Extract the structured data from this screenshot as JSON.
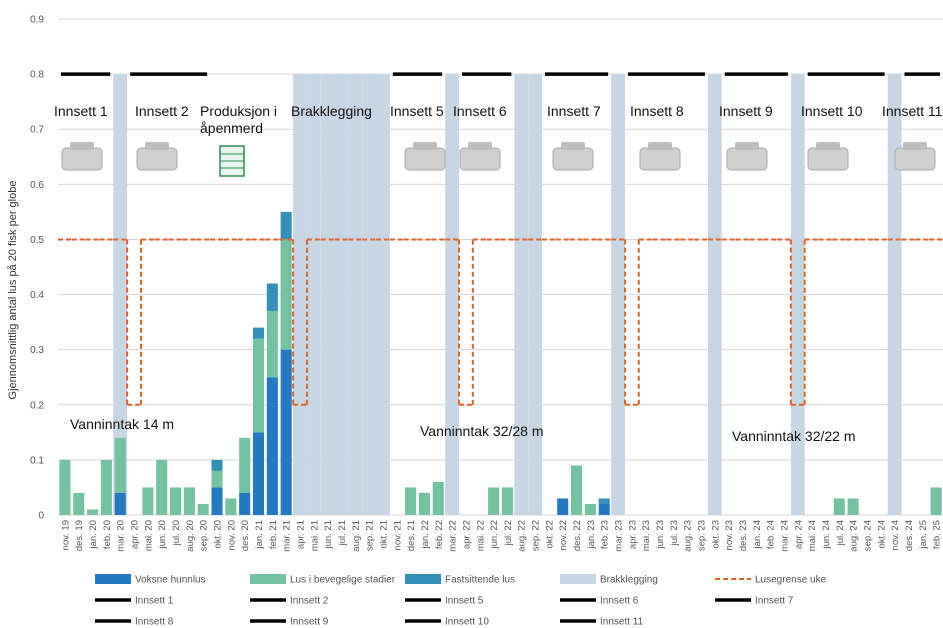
{
  "chart_data": {
    "type": "combo",
    "y_label": "Gjennomsnittlig antal lus på 20 fisk per globe",
    "ylim": [
      0,
      0.9
    ],
    "yticks": [
      0,
      0.1,
      0.2,
      0.3,
      0.4,
      0.5,
      0.6,
      0.7,
      0.8,
      0.9
    ],
    "grid": true,
    "categories": [
      "nov. 19",
      "des. 19",
      "jan. 20",
      "feb. 20",
      "mar. 20",
      "apr. 20",
      "mai. 20",
      "jun. 20",
      "jul. 20",
      "aug. 20",
      "sep. 20",
      "okt. 20",
      "nov. 20",
      "des. 20",
      "jan. 21",
      "feb. 21",
      "mar. 21",
      "apr. 21",
      "mai. 21",
      "jun. 21",
      "jul. 21",
      "aug. 21",
      "sep. 21",
      "okt. 21",
      "nov. 21",
      "des. 21",
      "jan. 22",
      "feb. 22",
      "mar. 22",
      "apr. 22",
      "mai. 22",
      "jun. 22",
      "jul. 22",
      "aug. 22",
      "sep. 22",
      "okt. 22",
      "nov. 22",
      "des. 22",
      "jan. 23",
      "feb. 23",
      "mar. 23",
      "apr. 23",
      "mai. 23",
      "jun. 23",
      "jul. 23",
      "aug. 23",
      "sep. 23",
      "okt. 23",
      "nov. 23",
      "des. 23",
      "jan. 24",
      "feb. 24",
      "mar. 24",
      "apr. 24",
      "mai. 24",
      "jun. 24",
      "jul. 24",
      "aug. 24",
      "sep. 24",
      "okt. 24",
      "nov. 24",
      "des. 24",
      "jan. 25",
      "feb. 25"
    ],
    "series": [
      {
        "name": "Voksne hunnlus",
        "type": "stacked",
        "color": "#2479c2",
        "values": [
          0,
          0,
          0,
          0,
          0.04,
          0,
          0,
          0,
          0,
          0,
          0,
          0.05,
          0,
          0.04,
          0.15,
          0.25,
          0.3,
          0,
          0,
          0,
          0,
          0,
          0,
          0,
          0,
          0,
          0,
          0,
          0,
          0,
          0,
          0,
          0,
          0,
          0,
          0,
          0.03,
          0,
          0,
          0.02,
          0,
          0,
          0,
          0,
          0,
          0,
          0,
          0,
          0,
          0,
          0,
          0,
          0,
          0,
          0,
          0,
          0,
          0,
          0,
          0,
          0,
          0,
          0,
          0
        ]
      },
      {
        "name": "Lus i bevegelige stadier",
        "type": "stacked",
        "color": "#74c2a1",
        "values": [
          0.1,
          0.04,
          0.01,
          0.1,
          0.1,
          0,
          0.05,
          0.1,
          0.05,
          0.05,
          0.02,
          0.03,
          0.03,
          0.1,
          0.17,
          0.12,
          0.2,
          0,
          0,
          0,
          0,
          0,
          0,
          0,
          0,
          0.05,
          0.04,
          0.06,
          0,
          0,
          0,
          0.05,
          0.05,
          0,
          0,
          0,
          0,
          0.09,
          0.02,
          0,
          0,
          0,
          0,
          0,
          0,
          0,
          0,
          0,
          0,
          0,
          0,
          0,
          0,
          0,
          0,
          0,
          0.03,
          0.03,
          0,
          0,
          0,
          0,
          0,
          0.05
        ]
      },
      {
        "name": "Fastsittende lus",
        "type": "stacked",
        "color": "#3590b8",
        "values": [
          0,
          0,
          0,
          0,
          0,
          0,
          0,
          0,
          0,
          0,
          0,
          0.02,
          0,
          0,
          0.02,
          0.05,
          0.05,
          0,
          0,
          0,
          0,
          0,
          0,
          0,
          0,
          0,
          0,
          0,
          0,
          0,
          0,
          0,
          0,
          0,
          0,
          0,
          0,
          0,
          0,
          0.01,
          0,
          0,
          0,
          0,
          0,
          0,
          0,
          0,
          0,
          0,
          0,
          0,
          0,
          0,
          0,
          0,
          0,
          0,
          0,
          0,
          0,
          0,
          0,
          0
        ]
      },
      {
        "name": "Brakklegging",
        "type": "band",
        "color": "#c8d5e3",
        "values": [
          null,
          null,
          null,
          null,
          0.8,
          null,
          null,
          null,
          null,
          null,
          null,
          null,
          null,
          null,
          null,
          null,
          null,
          0.8,
          0.8,
          0.8,
          0.8,
          0.8,
          0.8,
          0.8,
          null,
          null,
          null,
          null,
          0.8,
          null,
          null,
          null,
          null,
          0.8,
          0.8,
          null,
          null,
          null,
          null,
          null,
          0.8,
          null,
          null,
          null,
          null,
          null,
          null,
          0.8,
          null,
          null,
          null,
          null,
          null,
          0.8,
          null,
          null,
          null,
          null,
          null,
          null,
          0.8,
          null,
          null,
          null
        ]
      },
      {
        "name": "Lusegrense uke",
        "type": "step",
        "color": "#e0622f",
        "values": [
          0.5,
          0.5,
          0.5,
          0.5,
          0.5,
          0.2,
          0.5,
          0.5,
          0.5,
          0.5,
          0.5,
          0.5,
          0.5,
          0.5,
          0.5,
          0.5,
          0.5,
          0.2,
          0.5,
          0.5,
          0.5,
          0.5,
          0.5,
          0.5,
          0.5,
          0.5,
          0.5,
          0.5,
          0.5,
          0.2,
          0.5,
          0.5,
          0.5,
          0.5,
          0.5,
          0.5,
          0.5,
          0.5,
          0.5,
          0.5,
          0.5,
          0.2,
          0.5,
          0.5,
          0.5,
          0.5,
          0.5,
          0.5,
          0.5,
          0.5,
          0.5,
          0.5,
          0.5,
          0.2,
          0.5,
          0.5,
          0.5,
          0.5,
          0.5,
          0.5,
          0.5,
          0.5,
          0.5,
          0.5
        ]
      },
      {
        "name": "Innsett 1",
        "type": "line",
        "color": "#000000",
        "x": [
          "nov. 19",
          "feb. 20"
        ],
        "values": [
          0.8,
          0.8
        ]
      },
      {
        "name": "Innsett 2",
        "type": "line",
        "color": "#000000",
        "x": [
          "apr. 20",
          "sep. 20"
        ],
        "values": [
          0.8,
          0.8
        ]
      },
      {
        "name": "Innsett 5",
        "type": "line",
        "color": "#000000",
        "x": [
          "nov. 21",
          "feb. 22"
        ],
        "values": [
          0.8,
          0.8
        ]
      },
      {
        "name": "Innsett 6",
        "type": "line",
        "color": "#000000",
        "x": [
          "apr. 22",
          "jul. 22"
        ],
        "values": [
          0.8,
          0.8
        ]
      },
      {
        "name": "Innsett 7",
        "type": "line",
        "color": "#000000",
        "x": [
          "okt. 22",
          "feb. 23"
        ],
        "values": [
          0.8,
          0.8
        ]
      },
      {
        "name": "Innsett 8",
        "type": "line",
        "color": "#000000",
        "x": [
          "apr. 23",
          "sep. 23"
        ],
        "values": [
          0.8,
          0.8
        ]
      },
      {
        "name": "Innsett 9",
        "type": "line",
        "color": "#000000",
        "x": [
          "nov. 23",
          "mar. 24"
        ],
        "values": [
          0.8,
          0.8
        ]
      },
      {
        "name": "Innsett 10",
        "type": "line",
        "color": "#000000",
        "x": [
          "mai. 24",
          "okt. 24"
        ],
        "values": [
          0.8,
          0.8
        ]
      },
      {
        "name": "Innsett 11",
        "type": "line",
        "color": "#000000",
        "x": [
          "des. 24",
          "feb. 25"
        ],
        "values": [
          0.8,
          0.8
        ]
      }
    ],
    "annotations": [
      "Innsett 1",
      "Innsett 2",
      "Produksjon i åpenmerd",
      "Brakklegging",
      "Innsett 5",
      "Innsett 6",
      "Innsett 7",
      "Innsett 8",
      "Innsett 9",
      "Innsett 10",
      "Innsett 11",
      "Vanninntak 14 m",
      "Vanninntak 32/28 m",
      "Vanninntak 32/22 m"
    ]
  }
}
